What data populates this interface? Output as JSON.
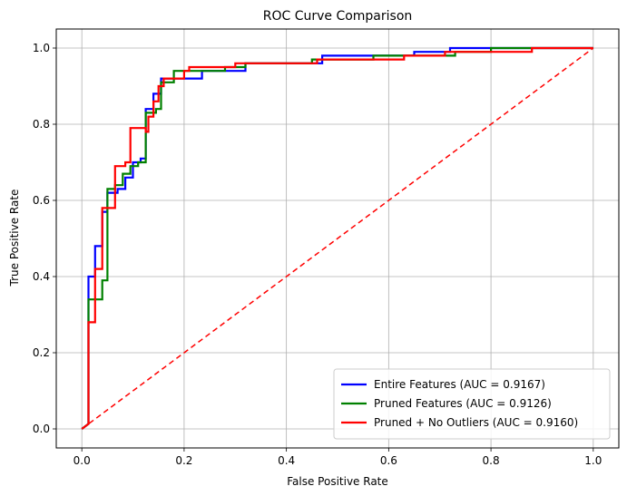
{
  "chart_data": {
    "type": "line",
    "title": "ROC Curve Comparison",
    "xlabel": "False Positive Rate",
    "ylabel": "True Positive Rate",
    "xlim": [
      -0.05,
      1.05
    ],
    "ylim": [
      -0.05,
      1.05
    ],
    "xticks": [
      "0.0",
      "0.2",
      "0.4",
      "0.6",
      "0.8",
      "1.0"
    ],
    "yticks": [
      "0.0",
      "0.2",
      "0.4",
      "0.6",
      "0.8",
      "1.0"
    ],
    "grid": true,
    "legend_position": "bottom-right",
    "series": [
      {
        "name": "Entire Features (AUC = 0.9167)",
        "color": "#0000ff",
        "points": [
          [
            0,
            0
          ],
          [
            0.013,
            0.013
          ],
          [
            0.013,
            0.4
          ],
          [
            0.026,
            0.4
          ],
          [
            0.026,
            0.48
          ],
          [
            0.04,
            0.48
          ],
          [
            0.04,
            0.57
          ],
          [
            0.05,
            0.57
          ],
          [
            0.05,
            0.62
          ],
          [
            0.07,
            0.62
          ],
          [
            0.07,
            0.63
          ],
          [
            0.085,
            0.63
          ],
          [
            0.085,
            0.66
          ],
          [
            0.1,
            0.66
          ],
          [
            0.1,
            0.7
          ],
          [
            0.115,
            0.7
          ],
          [
            0.115,
            0.71
          ],
          [
            0.125,
            0.71
          ],
          [
            0.125,
            0.84
          ],
          [
            0.14,
            0.84
          ],
          [
            0.14,
            0.88
          ],
          [
            0.155,
            0.88
          ],
          [
            0.155,
            0.92
          ],
          [
            0.235,
            0.92
          ],
          [
            0.235,
            0.94
          ],
          [
            0.32,
            0.94
          ],
          [
            0.32,
            0.96
          ],
          [
            0.47,
            0.96
          ],
          [
            0.47,
            0.98
          ],
          [
            0.65,
            0.98
          ],
          [
            0.65,
            0.99
          ],
          [
            0.72,
            0.99
          ],
          [
            0.72,
            1.0
          ],
          [
            1.0,
            1.0
          ]
        ]
      },
      {
        "name": "Pruned Features (AUC = 0.9126)",
        "color": "#008000",
        "points": [
          [
            0,
            0
          ],
          [
            0.013,
            0.013
          ],
          [
            0.013,
            0.34
          ],
          [
            0.04,
            0.34
          ],
          [
            0.04,
            0.39
          ],
          [
            0.05,
            0.39
          ],
          [
            0.05,
            0.63
          ],
          [
            0.065,
            0.63
          ],
          [
            0.065,
            0.64
          ],
          [
            0.08,
            0.64
          ],
          [
            0.08,
            0.67
          ],
          [
            0.095,
            0.67
          ],
          [
            0.095,
            0.69
          ],
          [
            0.11,
            0.69
          ],
          [
            0.11,
            0.7
          ],
          [
            0.125,
            0.7
          ],
          [
            0.125,
            0.83
          ],
          [
            0.145,
            0.83
          ],
          [
            0.145,
            0.84
          ],
          [
            0.155,
            0.84
          ],
          [
            0.155,
            0.91
          ],
          [
            0.18,
            0.91
          ],
          [
            0.18,
            0.94
          ],
          [
            0.28,
            0.94
          ],
          [
            0.28,
            0.95
          ],
          [
            0.32,
            0.95
          ],
          [
            0.32,
            0.96
          ],
          [
            0.45,
            0.96
          ],
          [
            0.45,
            0.97
          ],
          [
            0.57,
            0.97
          ],
          [
            0.57,
            0.98
          ],
          [
            0.73,
            0.98
          ],
          [
            0.73,
            0.99
          ],
          [
            0.8,
            0.99
          ],
          [
            0.8,
            1.0
          ],
          [
            1.0,
            1.0
          ]
        ]
      },
      {
        "name": "Pruned + No Outliers (AUC = 0.9160)",
        "color": "#ff0000",
        "points": [
          [
            0,
            0
          ],
          [
            0.013,
            0.013
          ],
          [
            0.013,
            0.28
          ],
          [
            0.026,
            0.28
          ],
          [
            0.026,
            0.42
          ],
          [
            0.04,
            0.42
          ],
          [
            0.04,
            0.58
          ],
          [
            0.065,
            0.58
          ],
          [
            0.065,
            0.69
          ],
          [
            0.085,
            0.69
          ],
          [
            0.085,
            0.7
          ],
          [
            0.095,
            0.7
          ],
          [
            0.095,
            0.79
          ],
          [
            0.125,
            0.79
          ],
          [
            0.125,
            0.78
          ],
          [
            0.13,
            0.78
          ],
          [
            0.13,
            0.82
          ],
          [
            0.14,
            0.82
          ],
          [
            0.14,
            0.86
          ],
          [
            0.15,
            0.86
          ],
          [
            0.15,
            0.9
          ],
          [
            0.16,
            0.9
          ],
          [
            0.16,
            0.92
          ],
          [
            0.2,
            0.92
          ],
          [
            0.2,
            0.94
          ],
          [
            0.21,
            0.94
          ],
          [
            0.21,
            0.95
          ],
          [
            0.3,
            0.95
          ],
          [
            0.3,
            0.96
          ],
          [
            0.46,
            0.96
          ],
          [
            0.46,
            0.97
          ],
          [
            0.63,
            0.97
          ],
          [
            0.63,
            0.98
          ],
          [
            0.71,
            0.98
          ],
          [
            0.71,
            0.99
          ],
          [
            0.88,
            0.99
          ],
          [
            0.88,
            1.0
          ],
          [
            1.0,
            1.0
          ]
        ]
      },
      {
        "name": "",
        "color": "#ff0000",
        "dashed": true,
        "points": [
          [
            0,
            0
          ],
          [
            1,
            1
          ]
        ]
      }
    ]
  }
}
